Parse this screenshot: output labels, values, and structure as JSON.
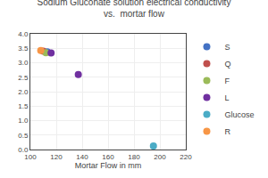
{
  "chart_data": {
    "type": "scatter",
    "title": "Sodium Gluconate solution electrical conductivity\nvs.  mortar flow",
    "xlabel": "Mortar Flow in mm",
    "xlim": [
      100,
      220
    ],
    "xticks": [
      100,
      120,
      140,
      160,
      180,
      200,
      220
    ],
    "ylim": [
      0.0,
      4.0
    ],
    "yticks": [
      {
        "value": 0.0,
        "label": "0.0"
      },
      0.5,
      {
        "value": 1.0,
        "label": "1.0"
      },
      1.5,
      {
        "value": 2.0,
        "label": "2.0"
      },
      2.5,
      {
        "value": 3.0,
        "label": "3.0"
      },
      3.5,
      {
        "value": 4.0,
        "label": "4.0"
      }
    ],
    "grid": true,
    "legend": "right",
    "series": [
      {
        "name": "S",
        "color": "#4472c4",
        "x": [
          113
        ],
        "values": [
          3.38
        ]
      },
      {
        "name": "Q",
        "color": "#c0504d",
        "x": [
          110
        ],
        "values": [
          3.4
        ]
      },
      {
        "name": "F",
        "color": "#9bbb59",
        "x": [
          112
        ],
        "values": [
          3.35
        ]
      },
      {
        "name": "L",
        "color": "#7030a0",
        "x": [
          116
        ],
        "values": [
          3.34
        ]
      },
      {
        "name": "Glucose",
        "color": "#4bacc6",
        "x": [
          195
        ],
        "values": [
          0.12
        ]
      },
      {
        "name": "R",
        "color": "#f79646",
        "x": [
          108
        ],
        "values": [
          3.42
        ]
      },
      {
        "color": "#7030a0",
        "x": [
          137
        ],
        "values": [
          2.59
        ]
      }
    ]
  }
}
